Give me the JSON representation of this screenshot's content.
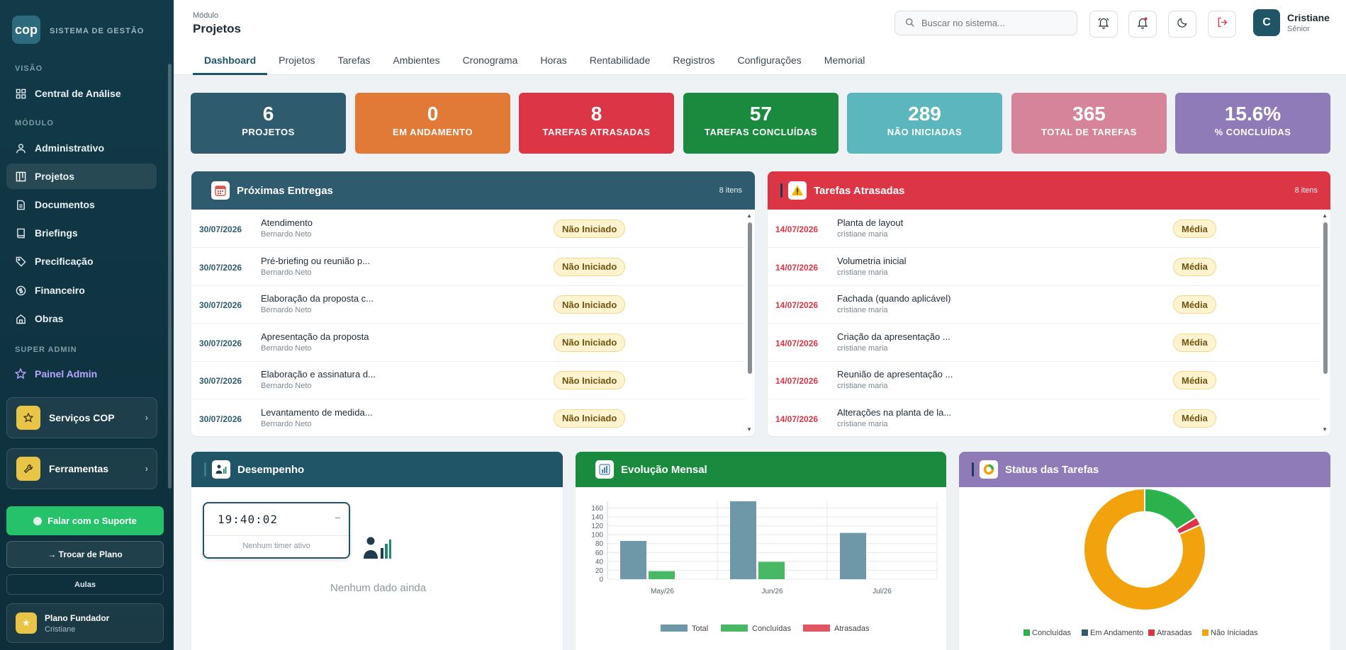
{
  "sidebar": {
    "logo": "cop",
    "brand": "SISTEMA DE GESTÃO",
    "sections": {
      "visao": "VISÃO",
      "modulo": "MÓDULO",
      "super_admin": "SUPER ADMIN"
    },
    "items": {
      "central": "Central de Análise",
      "administrativo": "Administrativo",
      "projetos": "Projetos",
      "documentos": "Documentos",
      "briefings": "Briefings",
      "precificacao": "Precificação",
      "financeiro": "Financeiro",
      "obras": "Obras",
      "painel_admin": "Painel Admin"
    },
    "cards": {
      "servicos": "Serviços COP",
      "ferramentas": "Ferramentas"
    },
    "support": "Falar com o Suporte",
    "change_plan": "→  Trocar de Plano",
    "aulas": "Aulas",
    "plan": {
      "name": "Plano Fundador",
      "user": "Cristiane"
    }
  },
  "header": {
    "module_label": "Módulo",
    "module_title": "Projetos",
    "search_placeholder": "Buscar no sistema...",
    "user": {
      "initial": "C",
      "name": "Cristiane",
      "role": "Sênior"
    },
    "tabs": [
      "Dashboard",
      "Projetos",
      "Tarefas",
      "Ambientes",
      "Cronograma",
      "Horas",
      "Rentabilidade",
      "Registros",
      "Configurações",
      "Memorial"
    ]
  },
  "kpis": [
    {
      "value": "6",
      "label": "PROJETOS",
      "color": "#2e5b6d"
    },
    {
      "value": "0",
      "label": "EM ANDAMENTO",
      "color": "#e27a37"
    },
    {
      "value": "8",
      "label": "TAREFAS ATRASADAS",
      "color": "#dc3545"
    },
    {
      "value": "57",
      "label": "TAREFAS CONCLUÍDAS",
      "color": "#1a8a3e"
    },
    {
      "value": "289",
      "label": "NÃO INICIADAS",
      "color": "#5bb6bd"
    },
    {
      "value": "365",
      "label": "TOTAL DE TAREFAS",
      "color": "#d5849a"
    },
    {
      "value": "15.6%",
      "label": "% CONCLUÍDAS",
      "color": "#8e7bb8"
    }
  ],
  "proximas": {
    "title": "Próximas Entregas",
    "count": "8 itens",
    "rows": [
      {
        "date": "30/07/2026",
        "title": "Atendimento",
        "person": "Bernardo Neto",
        "status": "Não Iniciado"
      },
      {
        "date": "30/07/2026",
        "title": "Pré-briefing ou reunião p...",
        "person": "Bernardo Neto",
        "status": "Não Iniciado"
      },
      {
        "date": "30/07/2026",
        "title": "Elaboração da proposta c...",
        "person": "Bernardo Neto",
        "status": "Não Iniciado"
      },
      {
        "date": "30/07/2026",
        "title": "Apresentação da proposta",
        "person": "Bernardo Neto",
        "status": "Não Iniciado"
      },
      {
        "date": "30/07/2026",
        "title": "Elaboração e assinatura d...",
        "person": "Bernardo Neto",
        "status": "Não Iniciado"
      },
      {
        "date": "30/07/2026",
        "title": "Levantamento de medida...",
        "person": "Bernardo Neto",
        "status": "Não Iniciado"
      }
    ]
  },
  "atrasadas": {
    "title": "Tarefas Atrasadas",
    "count": "8 itens",
    "rows": [
      {
        "date": "14/07/2026",
        "title": "Planta de layout",
        "person": "cristiane maria",
        "status": "Média"
      },
      {
        "date": "14/07/2026",
        "title": "Volumetria inicial",
        "person": "cristiane maria",
        "status": "Média"
      },
      {
        "date": "14/07/2026",
        "title": "Fachada (quando aplicável)",
        "person": "cristiane maria",
        "status": "Média"
      },
      {
        "date": "14/07/2026",
        "title": "Criação da apresentação ...",
        "person": "cristiane maria",
        "status": "Média"
      },
      {
        "date": "14/07/2026",
        "title": "Reunião de apresentação ...",
        "person": "cristiane maria",
        "status": "Média"
      },
      {
        "date": "14/07/2026",
        "title": "Alterações na planta de la...",
        "person": "cristiane maria",
        "status": "Média"
      }
    ]
  },
  "desempenho": {
    "title": "Desempenho",
    "timer": "19:40:02",
    "timer_dash": "–",
    "timer_status": "Nenhum timer ativo",
    "no_data": "Nenhum dado ainda"
  },
  "evolucao_title": "Evolução Mensal",
  "status_title": "Status das Tarefas",
  "chart_data": [
    {
      "type": "bar",
      "title": "Evolução Mensal",
      "categories": [
        "May/26",
        "Jun/26",
        "Jul/26"
      ],
      "series": [
        {
          "name": "Total",
          "values": [
            86,
            175,
            104
          ],
          "color": "#6e97a8"
        },
        {
          "name": "Concluídas",
          "values": [
            18,
            39,
            0
          ],
          "color": "#48b865"
        },
        {
          "name": "Atrasadas",
          "values": [
            0,
            0,
            0
          ],
          "color": "#e05663"
        }
      ],
      "yticks": [
        0,
        20,
        40,
        60,
        80,
        100,
        120,
        140,
        160
      ],
      "ylim": [
        0,
        175
      ],
      "legend": "bottom"
    },
    {
      "type": "pie",
      "title": "Status das Tarefas",
      "labels": [
        "Concluídas",
        "Em Andamento",
        "Atrasadas",
        "Não Iniciadas"
      ],
      "values": [
        57,
        0,
        8,
        289
      ],
      "colors": [
        "#2bb24c",
        "#2e5b6d",
        "#dc3545",
        "#f2a20c"
      ],
      "legend": "bottom"
    }
  ]
}
